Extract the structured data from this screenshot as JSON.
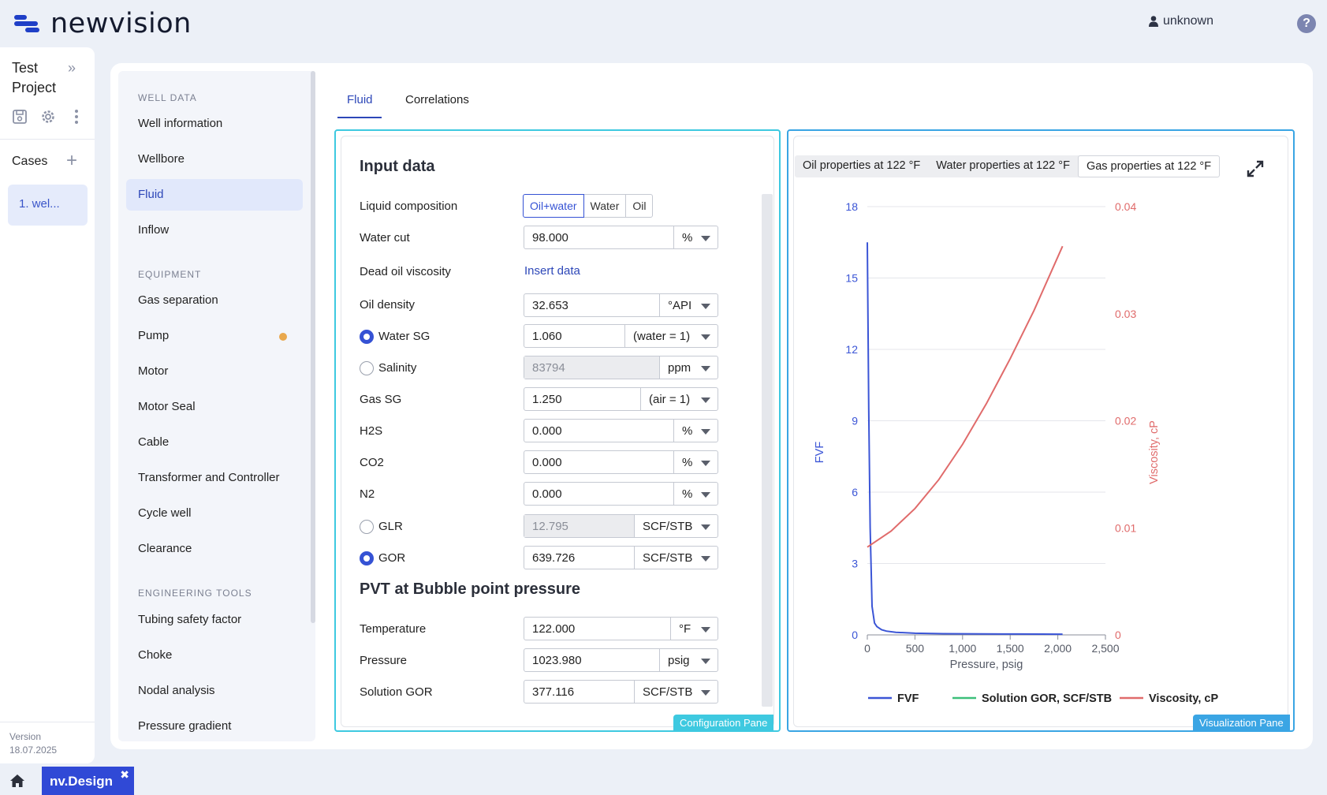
{
  "header": {
    "logo_text": "newvision",
    "user_name": "unknown",
    "help_icon": "question-circle-icon"
  },
  "project": {
    "title": "Test Project",
    "cases_label": "Cases",
    "case_item": "1. wel...",
    "version_label": "Version",
    "version_date": "18.07.2025"
  },
  "nav": {
    "sections": [
      {
        "label": "WELL DATA",
        "items": [
          "Well information",
          "Wellbore",
          "Fluid",
          "Inflow"
        ]
      },
      {
        "label": "EQUIPMENT",
        "items": [
          "Gas separation",
          "Pump",
          "Motor",
          "Motor Seal",
          "Cable",
          "Transformer and Controller",
          "Cycle well",
          "Clearance"
        ]
      },
      {
        "label": "ENGINEERING TOOLS",
        "items": [
          "Tubing safety factor",
          "Choke",
          "Nodal analysis",
          "Pressure gradient"
        ]
      }
    ],
    "active_item": "Fluid",
    "pump_status_color": "#e9a84d"
  },
  "tabs": [
    "Fluid",
    "Correlations"
  ],
  "config": {
    "pane_label": "Configuration Pane",
    "input_title": "Input data",
    "liquid_composition": {
      "label": "Liquid composition",
      "options": [
        "Oil+water",
        "Water",
        "Oil"
      ],
      "selected": "Oil+water"
    },
    "water_cut": {
      "label": "Water cut",
      "value": "98.000",
      "unit": "%"
    },
    "dead_oil": {
      "label": "Dead oil viscosity",
      "link": "Insert data"
    },
    "oil_density": {
      "label": "Oil density",
      "value": "32.653",
      "unit": "°API"
    },
    "water_sg": {
      "label": "Water SG",
      "value": "1.060",
      "unit": "(water = 1)",
      "selected": true
    },
    "salinity": {
      "label": "Salinity",
      "value": "83794",
      "unit": "ppm",
      "selected": false
    },
    "gas_sg": {
      "label": "Gas SG",
      "value": "1.250",
      "unit": "(air = 1)"
    },
    "h2s": {
      "label": "H2S",
      "value": "0.000",
      "unit": "%"
    },
    "co2": {
      "label": "CO2",
      "value": "0.000",
      "unit": "%"
    },
    "n2": {
      "label": "N2",
      "value": "0.000",
      "unit": "%"
    },
    "glr": {
      "label": "GLR",
      "value": "12.795",
      "unit": "SCF/STB",
      "selected": false
    },
    "gor": {
      "label": "GOR",
      "value": "639.726",
      "unit": "SCF/STB",
      "selected": true
    },
    "pvt_title": "PVT at Bubble point pressure",
    "temperature": {
      "label": "Temperature",
      "value": "122.000",
      "unit": "°F"
    },
    "pressure": {
      "label": "Pressure",
      "value": "1023.980",
      "unit": "psig"
    },
    "solution_gor": {
      "label": "Solution GOR",
      "value": "377.116",
      "unit": "SCF/STB"
    }
  },
  "viz": {
    "pane_label": "Visualization Pane",
    "tabs": [
      "Oil properties at 122 °F",
      "Water properties at 122 °F",
      "Gas properties at 122 °F"
    ],
    "active_tab": "Gas properties at 122 °F",
    "expand_icon": "expand-arrows-icon"
  },
  "chart_data": {
    "type": "line",
    "xlabel": "Pressure, psig",
    "ylabel_left": "FVF",
    "ylabel_right": "Viscosity, cP",
    "xlim": [
      0,
      2500
    ],
    "x_ticks": [
      "0",
      "500",
      "1,000",
      "1,500",
      "2,000",
      "2,500"
    ],
    "ylim_left": [
      0,
      18
    ],
    "y_ticks_left": [
      "0",
      "3",
      "6",
      "9",
      "12",
      "15",
      "18"
    ],
    "ylim_right": [
      0,
      0.04
    ],
    "y_ticks_right": [
      "0",
      "0.01",
      "0.02",
      "0.03",
      "0.04"
    ],
    "grid": true,
    "legend_position": "bottom",
    "series": [
      {
        "name": "FVF",
        "axis": "left",
        "color": "#3b55d6",
        "x": [
          0,
          15,
          30,
          50,
          75,
          100,
          150,
          200,
          300,
          500,
          800,
          1200,
          1600,
          2050
        ],
        "y": [
          16.5,
          9.5,
          4.5,
          1.2,
          0.5,
          0.35,
          0.22,
          0.16,
          0.11,
          0.07,
          0.05,
          0.04,
          0.035,
          0.03
        ]
      },
      {
        "name": "Solution GOR, SCF/STB",
        "axis": "none",
        "color": "#3dbf7a",
        "x": [],
        "y": []
      },
      {
        "name": "Viscosity, cP",
        "axis": "right",
        "color": "#e06b6b",
        "x": [
          0,
          250,
          500,
          750,
          1000,
          1250,
          1500,
          1750,
          2050
        ],
        "y": [
          0.0082,
          0.0097,
          0.0118,
          0.0145,
          0.0178,
          0.0216,
          0.0258,
          0.0303,
          0.0363
        ]
      }
    ]
  }
}
